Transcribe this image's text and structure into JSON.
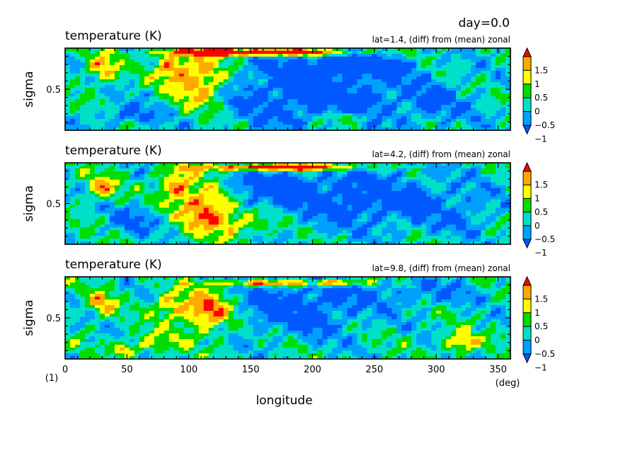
{
  "figure": {
    "day_label": "day=0.0",
    "panel_index": "(1)",
    "x_unit": "(deg)"
  },
  "chart_data": [
    {
      "type": "heatmap",
      "title": "temperature (K)",
      "subtitle": "lat=1.4, (diff) from (mean) zonal",
      "xlabel": "",
      "ylabel": "sigma",
      "ylim": [
        1.0,
        0.0
      ],
      "yticks": [
        0.5
      ],
      "features": [
        {
          "x": 130,
          "y": 0.05,
          "sx": 38,
          "sy": 0.03,
          "a": 2.2
        },
        {
          "x": 185,
          "y": 0.05,
          "sx": 40,
          "sy": 0.03,
          "a": 2.2
        },
        {
          "x": 110,
          "y": 0.42,
          "sx": 15,
          "sy": 0.22,
          "a": 2.0
        },
        {
          "x": 85,
          "y": 0.25,
          "sx": 10,
          "sy": 0.14,
          "a": 1.5
        },
        {
          "x": 30,
          "y": 0.25,
          "sx": 9,
          "sy": 0.12,
          "a": 1.4
        },
        {
          "x": 200,
          "y": 0.55,
          "sx": 60,
          "sy": 0.28,
          "a": -1.3
        },
        {
          "x": 230,
          "y": 0.2,
          "sx": 35,
          "sy": 0.1,
          "a": -1.0
        },
        {
          "x": 50,
          "y": 0.82,
          "sx": 18,
          "sy": 0.08,
          "a": -0.9
        },
        {
          "x": 230,
          "y": 0.85,
          "sx": 15,
          "sy": 0.06,
          "a": 0.9
        },
        {
          "x": 300,
          "y": 0.7,
          "sx": 25,
          "sy": 0.2,
          "a": -0.5
        }
      ]
    },
    {
      "type": "heatmap",
      "title": "temperature (K)",
      "subtitle": "lat=4.2, (diff) from (mean) zonal",
      "xlabel": "",
      "ylabel": "sigma",
      "ylim": [
        1.0,
        0.0
      ],
      "yticks": [
        0.5
      ],
      "features": [
        {
          "x": 150,
          "y": 0.06,
          "sx": 35,
          "sy": 0.03,
          "a": 2.2
        },
        {
          "x": 205,
          "y": 0.05,
          "sx": 25,
          "sy": 0.03,
          "a": 2.0
        },
        {
          "x": 115,
          "y": 0.55,
          "sx": 15,
          "sy": 0.2,
          "a": 2.0
        },
        {
          "x": 90,
          "y": 0.28,
          "sx": 10,
          "sy": 0.14,
          "a": 1.6
        },
        {
          "x": 30,
          "y": 0.3,
          "sx": 8,
          "sy": 0.1,
          "a": 1.5
        },
        {
          "x": 240,
          "y": 0.45,
          "sx": 50,
          "sy": 0.25,
          "a": -1.2
        },
        {
          "x": 160,
          "y": 0.3,
          "sx": 30,
          "sy": 0.15,
          "a": -1.0
        },
        {
          "x": 55,
          "y": 0.7,
          "sx": 15,
          "sy": 0.12,
          "a": -0.8
        },
        {
          "x": 145,
          "y": 0.75,
          "sx": 18,
          "sy": 0.1,
          "a": 1.0
        },
        {
          "x": 320,
          "y": 0.6,
          "sx": 22,
          "sy": 0.2,
          "a": -0.5
        }
      ]
    },
    {
      "type": "heatmap",
      "title": "temperature (K)",
      "subtitle": "lat=9.8, (diff) from (mean) zonal",
      "xlabel": "longitude",
      "ylabel": "sigma",
      "ylim": [
        1.0,
        0.0
      ],
      "yticks": [
        0.5
      ],
      "xlim": [
        0,
        360
      ],
      "xticks": [
        0,
        50,
        100,
        150,
        200,
        250,
        300,
        350
      ],
      "features": [
        {
          "x": 160,
          "y": 0.08,
          "sx": 30,
          "sy": 0.03,
          "a": 2.0
        },
        {
          "x": 220,
          "y": 0.07,
          "sx": 15,
          "sy": 0.03,
          "a": 2.0
        },
        {
          "x": 115,
          "y": 0.42,
          "sx": 14,
          "sy": 0.18,
          "a": 2.0
        },
        {
          "x": 85,
          "y": 0.35,
          "sx": 10,
          "sy": 0.12,
          "a": 1.3
        },
        {
          "x": 30,
          "y": 0.32,
          "sx": 8,
          "sy": 0.1,
          "a": 1.3
        },
        {
          "x": 190,
          "y": 0.35,
          "sx": 40,
          "sy": 0.25,
          "a": -1.2
        },
        {
          "x": 320,
          "y": 0.8,
          "sx": 10,
          "sy": 0.08,
          "a": 1.6
        },
        {
          "x": 48,
          "y": 0.88,
          "sx": 5,
          "sy": 0.05,
          "a": 1.5
        },
        {
          "x": 290,
          "y": 0.2,
          "sx": 30,
          "sy": 0.1,
          "a": -0.8
        },
        {
          "x": 70,
          "y": 0.8,
          "sx": 15,
          "sy": 0.1,
          "a": 0.8
        }
      ]
    }
  ],
  "colorbar": {
    "tick_labels": [
      "1.5",
      "1",
      "0.5",
      "0",
      "−0.5",
      "−1"
    ],
    "levels": [
      -1.0,
      -0.5,
      0.0,
      0.5,
      1.0,
      1.5
    ],
    "colors": [
      "#0058ff",
      "#00a0ff",
      "#00e0c8",
      "#00dd00",
      "#ffff00",
      "#ffaa00",
      "#ff0000"
    ]
  }
}
